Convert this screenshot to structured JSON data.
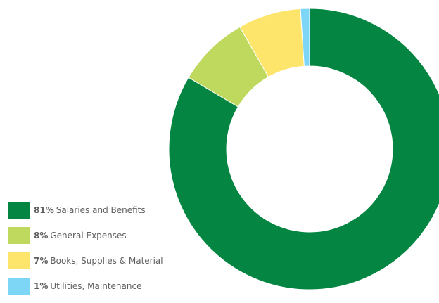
{
  "chart_data": {
    "type": "pie",
    "donut": true,
    "categories": [
      "Salaries and Benefits",
      "General Expenses",
      "Books, Supplies & Material",
      "Utilities, Maintenance"
    ],
    "values": [
      81,
      8,
      7,
      1
    ],
    "percent_labels": [
      "81%",
      "8%",
      "7%",
      "1%"
    ],
    "colors": [
      "#058542",
      "#bfd85e",
      "#fde46a",
      "#7ed6f6"
    ],
    "legend_placement": "bottom-left"
  }
}
